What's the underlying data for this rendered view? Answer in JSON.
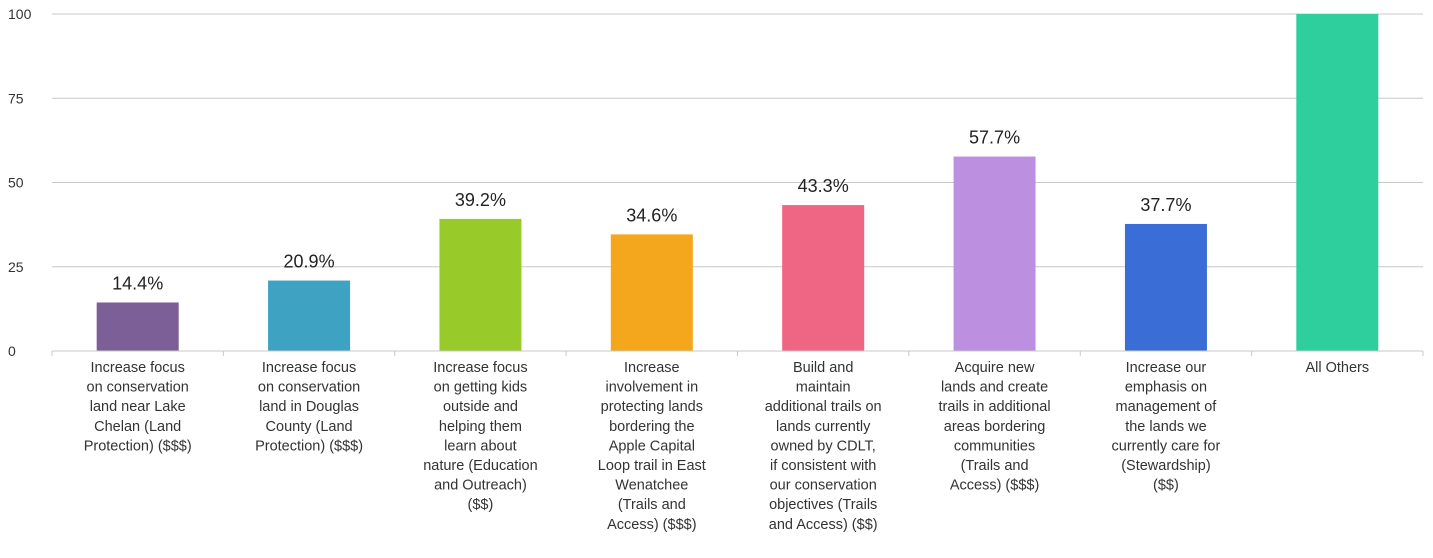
{
  "chart_data": {
    "type": "bar",
    "ylim": [
      0,
      100
    ],
    "yticks": [
      0,
      25,
      50,
      75,
      100
    ],
    "grid": true,
    "categories": [
      [
        "Increase focus",
        "on conservation",
        "land near Lake",
        "Chelan (Land",
        "Protection) ($$$)"
      ],
      [
        "Increase focus",
        "on conservation",
        "land in Douglas",
        "County (Land",
        "Protection) ($$$)"
      ],
      [
        "Increase focus",
        "on getting kids",
        "outside and",
        "helping them",
        "learn about",
        "nature (Education",
        "and Outreach)",
        "($$)"
      ],
      [
        "Increase",
        "involvement in",
        "protecting lands",
        "bordering the",
        "Apple Capital",
        "Loop trail in East",
        "Wenatchee",
        "(Trails and",
        "Access) ($$$)"
      ],
      [
        "Build and",
        "maintain",
        "additional trails on",
        "lands currently",
        "owned by CDLT,",
        "if consistent with",
        "our conservation",
        "objectives (Trails",
        "and Access) ($$)"
      ],
      [
        "Acquire new",
        "lands and create",
        "trails in additional",
        "areas bordering",
        "communities",
        "(Trails and",
        "Access) ($$$)"
      ],
      [
        "Increase our",
        "emphasis on",
        "management of",
        "the lands we",
        "currently care for",
        "(Stewardship)",
        "($$)"
      ],
      [
        "All Others"
      ]
    ],
    "values": [
      14.4,
      20.9,
      39.2,
      34.6,
      43.3,
      57.7,
      37.7,
      100
    ],
    "value_labels": [
      "14.4%",
      "20.9%",
      "39.2%",
      "34.6%",
      "43.3%",
      "57.7%",
      "37.7%",
      ""
    ],
    "colors": [
      "#7B5F96",
      "#3EA2C3",
      "#98CA2A",
      "#F4A61C",
      "#EF6584",
      "#BC8FE0",
      "#3A6ED6",
      "#2ECF9C"
    ]
  }
}
